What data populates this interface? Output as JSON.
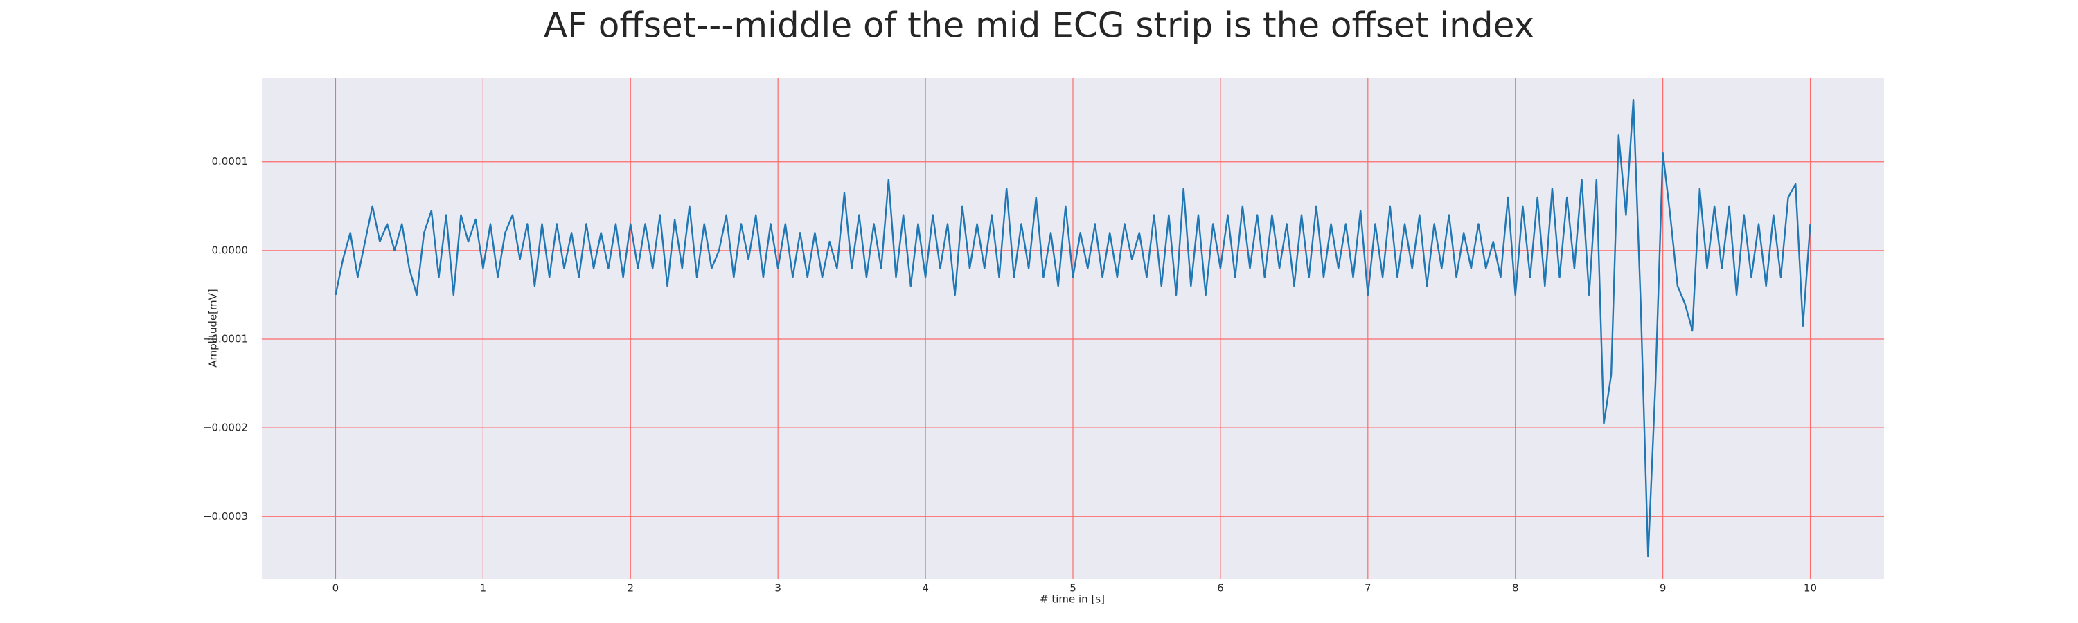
{
  "chart_data": {
    "type": "line",
    "title": "AF offset---middle of the mid ECG strip is the offset index",
    "x_label": "# time in [s]",
    "y_label": "Amplitude[mV]",
    "color": "#1f77b4",
    "background": "#eaeaf2",
    "grid": true,
    "grid_color": "#ff6b6b",
    "xlim": [
      -0.5,
      10.5
    ],
    "ylim": [
      -0.00037,
      0.000195
    ],
    "xticks": [
      0,
      1,
      2,
      3,
      4,
      5,
      6,
      7,
      8,
      9,
      10
    ],
    "yticks": [
      {
        "value": -0.0003,
        "label": "−0.0003"
      },
      {
        "value": -0.0002,
        "label": "−0.0002"
      },
      {
        "value": -0.0001,
        "label": "−0.0001"
      },
      {
        "value": 0,
        "label": "0.0000"
      },
      0.0001
    ],
    "x": [
      0,
      0.05,
      0.1,
      0.15,
      0.2,
      0.25,
      0.3,
      0.35,
      0.4,
      0.45,
      0.5,
      0.55,
      0.6,
      0.65,
      0.7,
      0.75,
      0.8,
      0.85,
      0.9,
      0.95,
      1,
      1.05,
      1.1,
      1.15,
      1.2,
      1.25,
      1.3,
      1.35,
      1.4,
      1.45,
      1.5,
      1.55,
      1.6,
      1.65,
      1.7,
      1.75,
      1.8,
      1.85,
      1.9,
      1.95,
      2,
      2.05,
      2.1,
      2.15,
      2.2,
      2.25,
      2.3,
      2.35,
      2.4,
      2.45,
      2.5,
      2.55,
      2.6,
      2.65,
      2.7,
      2.75,
      2.8,
      2.85,
      2.9,
      2.95,
      3,
      3.05,
      3.1,
      3.15,
      3.2,
      3.25,
      3.3,
      3.35,
      3.4,
      3.45,
      3.5,
      3.55,
      3.6,
      3.65,
      3.7,
      3.75,
      3.8,
      3.85,
      3.9,
      3.95,
      4,
      4.05,
      4.1,
      4.15,
      4.2,
      4.25,
      4.3,
      4.35,
      4.4,
      4.45,
      4.5,
      4.55,
      4.6,
      4.65,
      4.7,
      4.75,
      4.8,
      4.85,
      4.9,
      4.95,
      5,
      5.05,
      5.1,
      5.15,
      5.2,
      5.25,
      5.3,
      5.35,
      5.4,
      5.45,
      5.5,
      5.55,
      5.6,
      5.65,
      5.7,
      5.75,
      5.8,
      5.85,
      5.9,
      5.95,
      6,
      6.05,
      6.1,
      6.15,
      6.2,
      6.25,
      6.3,
      6.35,
      6.4,
      6.45,
      6.5,
      6.55,
      6.6,
      6.65,
      6.7,
      6.75,
      6.8,
      6.85,
      6.9,
      6.95,
      7,
      7.05,
      7.1,
      7.15,
      7.2,
      7.25,
      7.3,
      7.35,
      7.4,
      7.45,
      7.5,
      7.55,
      7.6,
      7.65,
      7.7,
      7.75,
      7.8,
      7.85,
      7.9,
      7.95,
      8,
      8.05,
      8.1,
      8.15,
      8.2,
      8.25,
      8.3,
      8.35,
      8.4,
      8.45,
      8.5,
      8.55,
      8.6,
      8.65,
      8.7,
      8.75,
      8.8,
      8.85,
      8.9,
      8.95,
      9,
      9.05,
      9.1,
      9.15,
      9.2,
      9.25,
      9.3,
      9.35,
      9.4,
      9.45,
      9.5,
      9.55,
      9.6,
      9.65,
      9.7,
      9.75,
      9.8,
      9.85,
      9.9,
      9.95,
      10
    ],
    "values": [
      -5e-05,
      -1e-05,
      2e-05,
      -3e-05,
      1e-05,
      5e-05,
      1e-05,
      3e-05,
      0,
      3e-05,
      -2e-05,
      -5e-05,
      2e-05,
      4.5e-05,
      -3e-05,
      4e-05,
      -5e-05,
      4e-05,
      1e-05,
      3.5e-05,
      -2e-05,
      3e-05,
      -3e-05,
      2e-05,
      4e-05,
      -1e-05,
      3e-05,
      -4e-05,
      3e-05,
      -3e-05,
      3e-05,
      -2e-05,
      2e-05,
      -3e-05,
      3e-05,
      -2e-05,
      2e-05,
      -2e-05,
      3e-05,
      -3e-05,
      3e-05,
      -2e-05,
      3e-05,
      -2e-05,
      4e-05,
      -4e-05,
      3.5e-05,
      -2e-05,
      5e-05,
      -3e-05,
      3e-05,
      -2e-05,
      0,
      4e-05,
      -3e-05,
      3e-05,
      -1e-05,
      4e-05,
      -3e-05,
      3e-05,
      -2e-05,
      3e-05,
      -3e-05,
      2e-05,
      -3e-05,
      2e-05,
      -3e-05,
      1e-05,
      -2e-05,
      6.5e-05,
      -2e-05,
      4e-05,
      -3e-05,
      3e-05,
      -2e-05,
      8e-05,
      -3e-05,
      4e-05,
      -4e-05,
      3e-05,
      -3e-05,
      4e-05,
      -2e-05,
      3e-05,
      -5e-05,
      5e-05,
      -2e-05,
      3e-05,
      -2e-05,
      4e-05,
      -3e-05,
      7e-05,
      -3e-05,
      3e-05,
      -2e-05,
      6e-05,
      -3e-05,
      2e-05,
      -4e-05,
      5e-05,
      -3e-05,
      2e-05,
      -2e-05,
      3e-05,
      -3e-05,
      2e-05,
      -3e-05,
      3e-05,
      -1e-05,
      2e-05,
      -3e-05,
      4e-05,
      -4e-05,
      4e-05,
      -5e-05,
      7e-05,
      -4e-05,
      4e-05,
      -5e-05,
      3e-05,
      -2e-05,
      4e-05,
      -3e-05,
      5e-05,
      -2e-05,
      4e-05,
      -3e-05,
      4e-05,
      -2e-05,
      3e-05,
      -4e-05,
      4e-05,
      -3e-05,
      5e-05,
      -3e-05,
      3e-05,
      -2e-05,
      3e-05,
      -3e-05,
      4.5e-05,
      -5e-05,
      3e-05,
      -3e-05,
      5e-05,
      -3e-05,
      3e-05,
      -2e-05,
      4e-05,
      -4e-05,
      3e-05,
      -2e-05,
      4e-05,
      -3e-05,
      2e-05,
      -2e-05,
      3e-05,
      -2e-05,
      1e-05,
      -3e-05,
      6e-05,
      -5e-05,
      5e-05,
      -3e-05,
      6e-05,
      -4e-05,
      7e-05,
      -3e-05,
      6e-05,
      -2e-05,
      8e-05,
      -5e-05,
      8e-05,
      -0.000195,
      -0.00014,
      0.00013,
      4e-05,
      0.00017,
      -6e-05,
      -0.000345,
      -0.00015,
      0.00011,
      4e-05,
      -4e-05,
      -6e-05,
      -9e-05,
      7e-05,
      -2e-05,
      5e-05,
      -2e-05,
      5e-05,
      -5e-05,
      4e-05,
      -3e-05,
      3e-05,
      -4e-05,
      4e-05,
      -3e-05,
      6e-05,
      7.5e-05,
      -8.5e-05,
      3e-05
    ]
  }
}
